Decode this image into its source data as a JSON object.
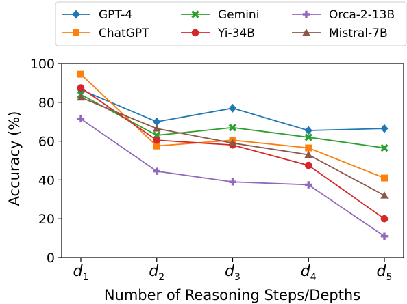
{
  "chart_data": {
    "type": "line",
    "title": "",
    "xlabel": "Number of Reasoning Steps/Depths",
    "ylabel": "Accuracy (%)",
    "categories": [
      {
        "base": "d",
        "sub": "1"
      },
      {
        "base": "d",
        "sub": "2"
      },
      {
        "base": "d",
        "sub": "3"
      },
      {
        "base": "d",
        "sub": "4"
      },
      {
        "base": "d",
        "sub": "5"
      }
    ],
    "ylim": [
      0,
      100
    ],
    "yticks": [
      0,
      20,
      40,
      60,
      80,
      100
    ],
    "grid": false,
    "legend_position": "top",
    "series": [
      {
        "name": "GPT-4",
        "color": "#1f77b4",
        "marker": "diamond",
        "values": [
          86.5,
          70.0,
          77.0,
          65.5,
          66.5
        ]
      },
      {
        "name": "ChatGPT",
        "color": "#ff7f0e",
        "marker": "square",
        "values": [
          94.5,
          57.5,
          60.5,
          56.5,
          41.0
        ]
      },
      {
        "name": "Gemini",
        "color": "#2ca02c",
        "marker": "x",
        "values": [
          84.0,
          63.0,
          67.0,
          62.0,
          56.5
        ]
      },
      {
        "name": "Yi-34B",
        "color": "#d62728",
        "marker": "circle",
        "values": [
          87.5,
          60.5,
          58.0,
          47.5,
          20.0
        ]
      },
      {
        "name": "Orca-2-13B",
        "color": "#9467bd",
        "marker": "plus",
        "values": [
          71.5,
          44.5,
          39.0,
          37.5,
          11.0
        ]
      },
      {
        "name": "Mistral-7B",
        "color": "#8c564b",
        "marker": "triangle",
        "values": [
          82.5,
          66.5,
          59.0,
          53.0,
          32.0
        ]
      }
    ]
  }
}
